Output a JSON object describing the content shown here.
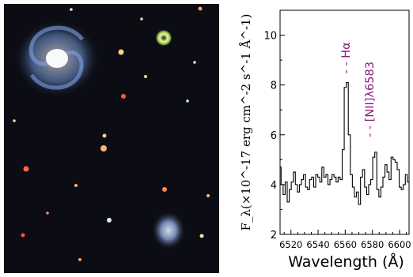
{
  "chart_data": {
    "type": "line",
    "line_style": "steps",
    "image_panel": "color sky image with a large face-on spiral galaxy (upper left), a smaller diffuse galaxy (lower right) and scattered point sources on a black background",
    "xlabel": "Wavelength (Å)",
    "ylabel": "F_λ(×10^-17 erg cm^-2 s^-1 Å^-1)",
    "xlim": [
      6512,
      6607
    ],
    "ylim": [
      2,
      11
    ],
    "xticks": [
      6520,
      6540,
      6560,
      6580,
      6600
    ],
    "yticks": [
      2,
      4,
      6,
      8,
      10
    ],
    "grid": false,
    "line_color": "#000000",
    "annotations": [
      {
        "text": "Hα",
        "x": 6562.8,
        "color": "#8b1a7e"
      },
      {
        "text": "[NII]λ6583",
        "x": 6583.0,
        "color": "#8b1a7e"
      }
    ],
    "series": [
      {
        "x": [
          6512,
          6513.5,
          6515,
          6516.5,
          6518,
          6519.5,
          6521,
          6522.5,
          6524,
          6525.5,
          6527,
          6528.5,
          6530,
          6531.5,
          6533,
          6534.5,
          6536,
          6537.5,
          6539,
          6540.5,
          6542,
          6543.5,
          6545,
          6546.5,
          6548,
          6549.5,
          6551,
          6552.5,
          6554,
          6555.5,
          6557,
          6558.5,
          6560,
          6561.5,
          6563,
          6564.5,
          6566,
          6567.5,
          6569,
          6570.5,
          6572,
          6573.5,
          6575,
          6576.5,
          6578,
          6579.5,
          6581,
          6582.5,
          6584,
          6585.5,
          6587,
          6588.5,
          6590,
          6591.5,
          6593,
          6594.5,
          6596,
          6597.5,
          6599,
          6600.5,
          6602,
          6603.5,
          6605,
          6606.5
        ],
        "values": [
          4.7,
          4.0,
          3.6,
          4.1,
          3.3,
          3.8,
          4.1,
          4.5,
          4.0,
          3.7,
          4.0,
          4.2,
          4.4,
          3.9,
          3.8,
          4.2,
          4.3,
          3.9,
          4.4,
          4.3,
          4.1,
          4.7,
          4.3,
          4.4,
          4.0,
          4.2,
          4.4,
          4.3,
          4.1,
          4.3,
          4.2,
          5.4,
          7.9,
          8.1,
          6.0,
          4.4,
          3.9,
          3.5,
          3.7,
          3.2,
          4.3,
          4.6,
          3.9,
          3.6,
          4.0,
          4.2,
          5.1,
          5.3,
          3.8,
          3.5,
          3.9,
          4.3,
          4.8,
          4.5,
          4.2,
          5.1,
          5.0,
          4.9,
          4.6,
          3.9,
          3.8,
          4.0,
          4.4,
          4.1
        ]
      }
    ]
  }
}
